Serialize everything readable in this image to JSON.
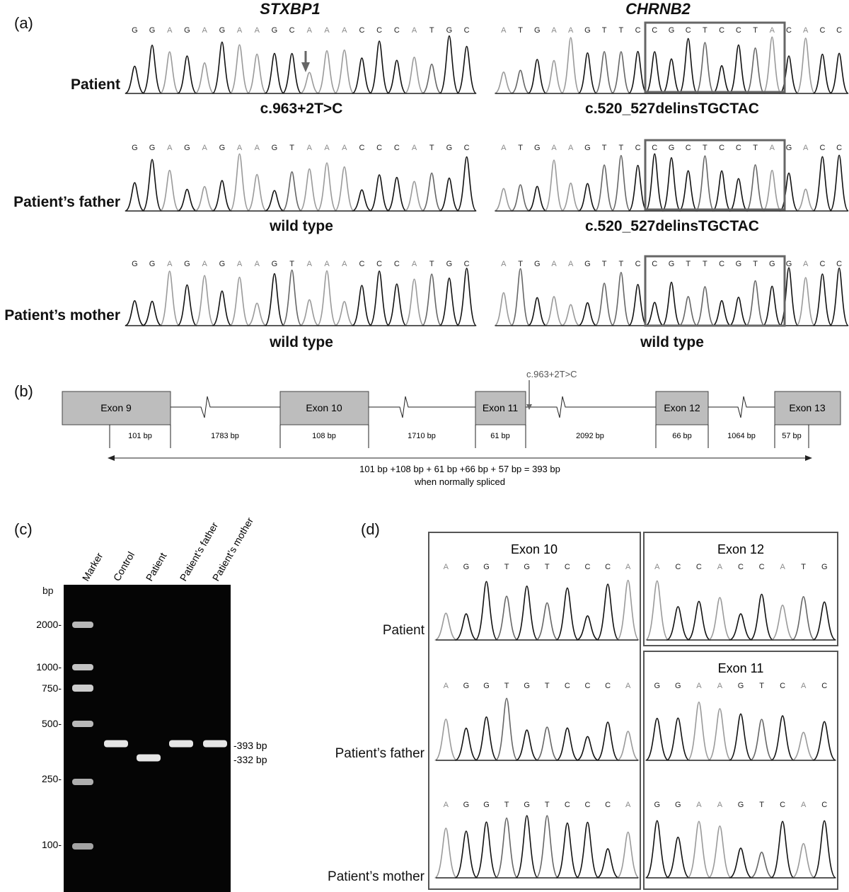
{
  "panel_a": {
    "label": "(a)",
    "genes": [
      "STXBP1",
      "CHRNB2"
    ],
    "rows": [
      {
        "name": "Patient",
        "stxbp1_seq": "GGAGAGAAGCAAACCCATGC",
        "stxbp1_result": "c.963+2T>C",
        "chrnb2_seq": "ATGAAGTTCCGCTCCTACACC",
        "chrnb2_result": "c.520_527delinsTGCTAC"
      },
      {
        "name": "Patient’s father",
        "stxbp1_seq": "GGAGAGAAGTAAACCCATGC",
        "stxbp1_result": "wild type",
        "chrnb2_seq": "ATGAAGTTCCGCTCCTAGACC",
        "chrnb2_result": "c.520_527delinsTGCTAC"
      },
      {
        "name": "Patient’s mother",
        "stxbp1_seq": "GGAGAGAAGTAAACCCATGC",
        "stxbp1_result": "wild type",
        "chrnb2_seq": "ATGAAGTTCCGTTCGTGGACC",
        "chrnb2_result": "wild type"
      }
    ]
  },
  "panel_b": {
    "label": "(b)",
    "exons": [
      "Exon 9",
      "Exon 10",
      "Exon 11",
      "Exon 12",
      "Exon 13"
    ],
    "segment_sizes": [
      "101 bp",
      "1783 bp",
      "108 bp",
      "1710 bp",
      "61 bp",
      "2092 bp",
      "66 bp",
      "1064 bp",
      "57 bp"
    ],
    "mutation": "c.963+2T>C",
    "equation": "101 bp +108 bp + 61 bp +66 bp + 57 bp = 393 bp",
    "note": "when normally spliced"
  },
  "panel_c": {
    "label": "(c)",
    "lanes": [
      "Marker",
      "Control",
      "Patient",
      "Patient’s father",
      "Patient’s mother"
    ],
    "unit": "bp",
    "marker_sizes": [
      "2000-",
      "1000-",
      "750-",
      "500-",
      "250-",
      "100-"
    ],
    "band_labels": [
      "-393 bp",
      "-332 bp"
    ],
    "bands": [
      {
        "lane": "Control",
        "size_bp": 393
      },
      {
        "lane": "Patient",
        "size_bp": 332
      },
      {
        "lane": "Patient’s father",
        "size_bp": 393
      },
      {
        "lane": "Patient’s mother",
        "size_bp": 393
      }
    ]
  },
  "panel_d": {
    "label": "(d)",
    "boxes": [
      "Exon 10",
      "Exon 12",
      "Exon 11"
    ],
    "rows": [
      {
        "name": "Patient",
        "left_seq": "AGGTGTCCCA",
        "right_seq": "ACCACCATG"
      },
      {
        "name": "Patient’s father",
        "left_seq": "AGGTGTCCCA",
        "right_seq": "GGAAGTCAC"
      },
      {
        "name": "Patient’s mother",
        "left_seq": "AGGTGTCCCA",
        "right_seq": "GGAAGTCAC"
      }
    ]
  }
}
